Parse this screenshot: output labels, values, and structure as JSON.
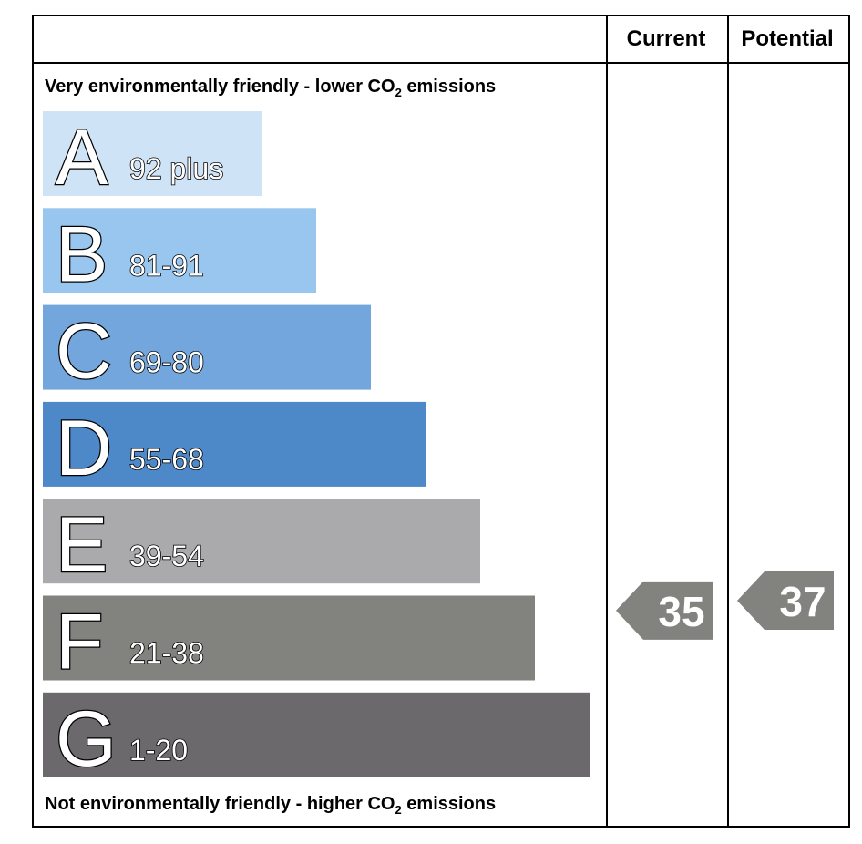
{
  "header": {
    "current_label": "Current",
    "potential_label": "Potential"
  },
  "top_caption": {
    "prefix": "Very environmentally friendly - lower CO",
    "sub": "2",
    "suffix": " emissions"
  },
  "bottom_caption": {
    "prefix": "Not environmentally friendly - higher CO",
    "sub": "2",
    "suffix": " emissions"
  },
  "chart_data": {
    "type": "bar",
    "bands": [
      {
        "letter": "A",
        "range": "92 plus",
        "color": "#cfe3f6",
        "min": 92,
        "max": 100
      },
      {
        "letter": "B",
        "range": "81-91",
        "color": "#99c6ee",
        "min": 81,
        "max": 91
      },
      {
        "letter": "C",
        "range": "69-80",
        "color": "#73a6dc",
        "min": 69,
        "max": 80
      },
      {
        "letter": "D",
        "range": "55-68",
        "color": "#4d88c8",
        "min": 55,
        "max": 68
      },
      {
        "letter": "E",
        "range": "39-54",
        "color": "#aaa9ab",
        "min": 39,
        "max": 54
      },
      {
        "letter": "F",
        "range": "21-38",
        "color": "#82827e",
        "min": 21,
        "max": 38
      },
      {
        "letter": "G",
        "range": "1-20",
        "color": "#6b696b",
        "min": 1,
        "max": 20
      }
    ],
    "current": {
      "value": 35,
      "color": "#82827e"
    },
    "potential": {
      "value": 37,
      "color": "#82827e"
    }
  }
}
